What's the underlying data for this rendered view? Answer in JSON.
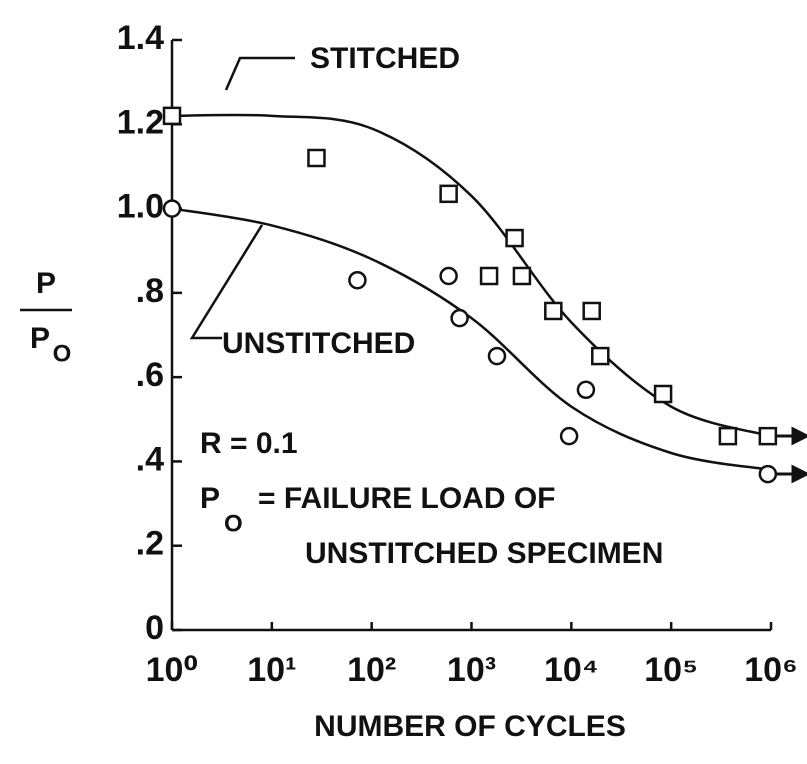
{
  "chart_data": {
    "type": "scatter",
    "xlabel": "NUMBER OF CYCLES",
    "ylabel": {
      "numerator": "P",
      "denominator": "P",
      "subscript": "O"
    },
    "annotations": [
      "STITCHED",
      "UNSTITCHED",
      "R = 0.1",
      "P",
      "O",
      "= FAILURE LOAD OF",
      "UNSTITCHED SPECIMEN"
    ],
    "xscale": "log",
    "xlim": [
      1,
      1000000
    ],
    "ylim": [
      0,
      1.4
    ],
    "xticks": [
      {
        "value": 1,
        "label": "10⁰"
      },
      {
        "value": 10,
        "label": "10¹"
      },
      {
        "value": 100,
        "label": "10²"
      },
      {
        "value": 1000,
        "label": "10³"
      },
      {
        "value": 10000,
        "label": "10⁴"
      },
      {
        "value": 100000,
        "label": "10⁵"
      },
      {
        "value": 1000000,
        "label": "10⁶"
      }
    ],
    "yticks": [
      0,
      {
        "value": 0.2,
        "label": ".2"
      },
      {
        "value": 0.4,
        "label": ".4"
      },
      {
        "value": 0.6,
        "label": ".6"
      },
      {
        "value": 0.8,
        "label": ".8"
      },
      {
        "value": 1.0,
        "label": "1.0"
      },
      1.2,
      1.4
    ],
    "color": "#111111",
    "series": [
      {
        "marker": "square",
        "x": [
          1,
          28,
          590,
          1500,
          2700,
          3200,
          6600,
          16000,
          19500,
          83000,
          370000,
          930000
        ],
        "values": [
          1.22,
          1.12,
          1.035,
          0.84,
          0.93,
          0.84,
          0.757,
          0.757,
          0.65,
          0.56,
          0.46,
          0.46
        ]
      },
      {
        "marker": "circle",
        "x": [
          1,
          72,
          590,
          760,
          1800,
          9500,
          14000,
          930000
        ],
        "values": [
          1.0,
          0.83,
          0.84,
          0.74,
          0.65,
          0.46,
          0.57,
          0.37
        ]
      }
    ],
    "curves": [
      {
        "x": [
          1,
          10,
          100,
          1000,
          10000,
          100000,
          1000000
        ],
        "values": [
          1.22,
          1.22,
          1.19,
          1.03,
          0.73,
          0.53,
          0.46
        ]
      },
      {
        "x": [
          1,
          10,
          100,
          1000,
          10000,
          100000,
          1000000
        ],
        "values": [
          1.0,
          0.96,
          0.88,
          0.74,
          0.53,
          0.42,
          0.38
        ]
      }
    ]
  }
}
